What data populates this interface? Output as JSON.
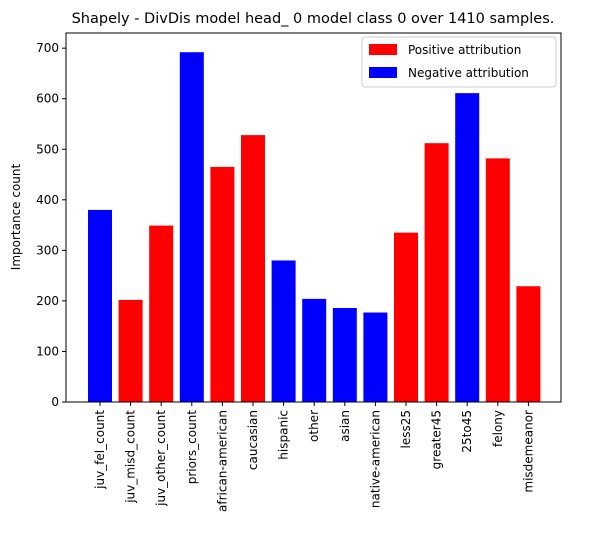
{
  "chart_data": {
    "type": "bar",
    "title": "Shapely - DivDis model head_ 0 model class 0 over 1410 samples.",
    "xlabel": "",
    "ylabel": "Importance count",
    "ylim": [
      0,
      730
    ],
    "yticks": [
      0,
      100,
      200,
      300,
      400,
      500,
      600,
      700
    ],
    "categories": [
      "juv_fel_count",
      "juv_misd_count",
      "juv_other_count",
      "priors_count",
      "african-american",
      "caucasian",
      "hispanic",
      "other",
      "asian",
      "native-american",
      "less25",
      "greater45",
      "25to45",
      "felony",
      "misdemeanor"
    ],
    "values": [
      380,
      202,
      349,
      692,
      465,
      528,
      280,
      204,
      186,
      177,
      335,
      512,
      611,
      482,
      229
    ],
    "bar_sign": [
      "negative",
      "positive",
      "positive",
      "negative",
      "positive",
      "positive",
      "negative",
      "negative",
      "negative",
      "negative",
      "positive",
      "positive",
      "negative",
      "positive",
      "positive"
    ],
    "colors": {
      "positive": "#ff0000",
      "negative": "#0000ff"
    },
    "legend": {
      "placement": "top-right",
      "entries": [
        {
          "label": "Positive attribution",
          "key": "positive"
        },
        {
          "label": "Negative attribution",
          "key": "negative"
        }
      ]
    },
    "grid": false
  }
}
